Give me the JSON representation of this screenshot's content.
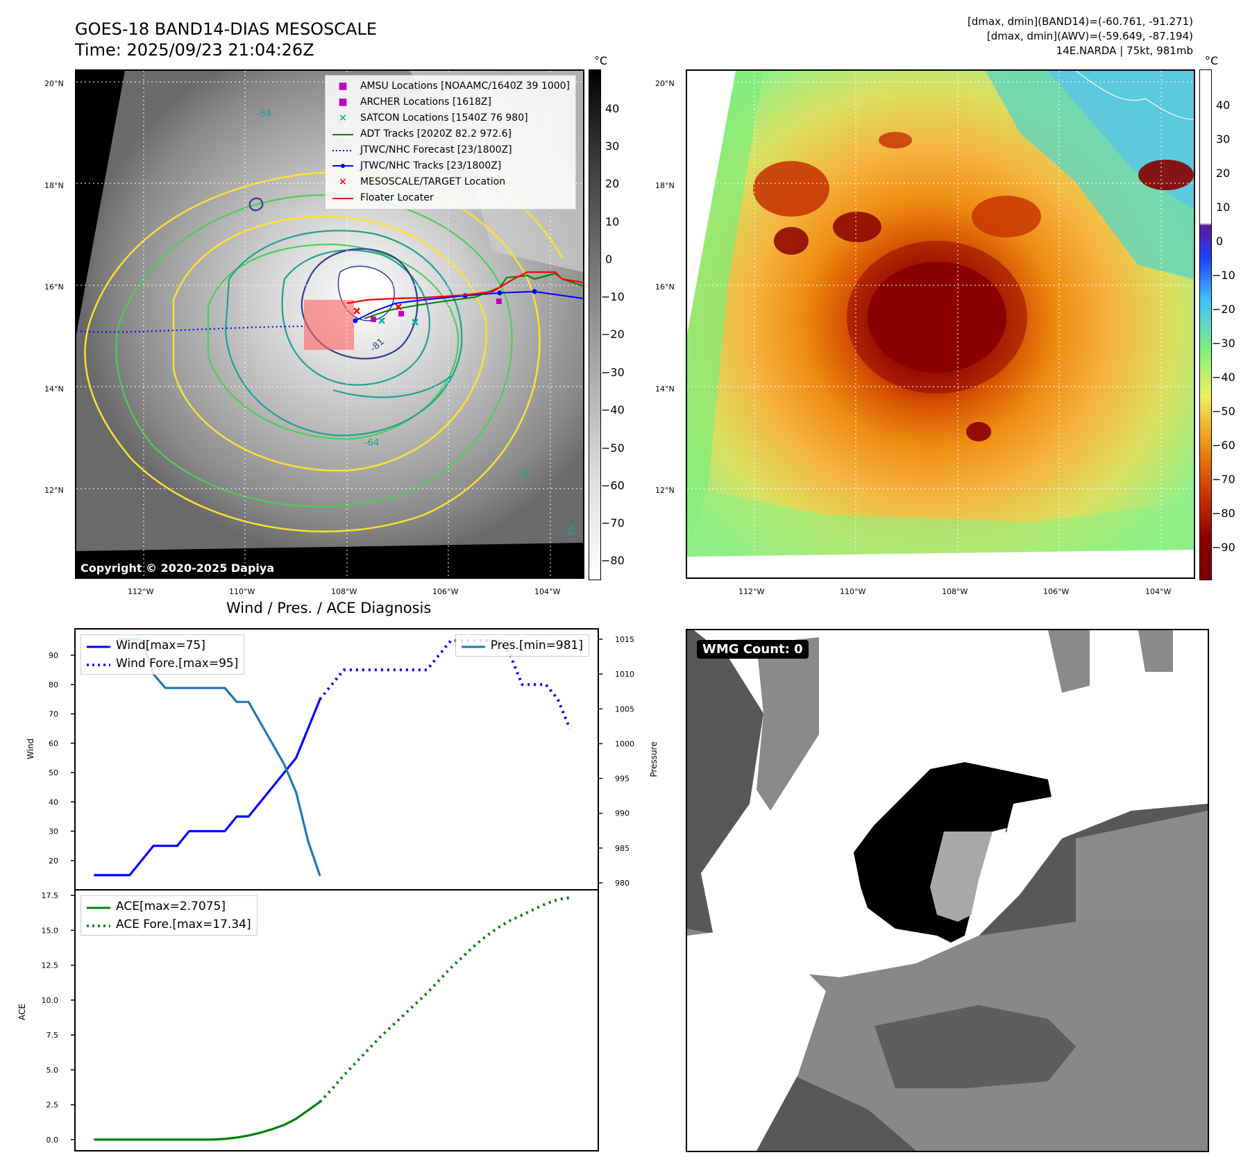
{
  "header": {
    "title_line1": "GOES-18 BAND14-DIAS MESOSCALE",
    "title_line2": "Time: 2025/09/23 21:04:26Z",
    "info_line1": "[dmax, dmin](BAND14)=(-60.761, -91.271)",
    "info_line2": "[dmax, dmin](AWV)=(-59.649, -87.194)",
    "info_line3": "14E.NARDA | 75kt, 981mb"
  },
  "map": {
    "lat_labels": [
      "20°N",
      "18°N",
      "16°N",
      "14°N",
      "12°N"
    ],
    "lon_labels": [
      "112°W",
      "110°W",
      "108°W",
      "106°W",
      "104°W"
    ],
    "colorbar_unit": "°C",
    "left_colorbar_ticks": [
      "40",
      "30",
      "20",
      "10",
      "0",
      "−10",
      "−20",
      "−30",
      "−40",
      "−50",
      "−60",
      "−70",
      "−80"
    ],
    "right_colorbar_ticks": [
      "40",
      "30",
      "20",
      "10",
      "0",
      "−10",
      "−20",
      "−30",
      "−40",
      "−50",
      "−60",
      "−70",
      "−80",
      "−90"
    ],
    "copyright": "Copyright © 2020-2025 Dapiya",
    "contour_labels": [
      "-54",
      "-64",
      "-81",
      "-31",
      "-54"
    ],
    "legend": [
      {
        "label": "AMSU Locations [NOAAMC/1640Z 39 1000]",
        "color": "#c000c0",
        "symbol": "■"
      },
      {
        "label": "ARCHER Locations [1618Z]",
        "color": "#c000c0",
        "symbol": "■"
      },
      {
        "label": "SATCON Locations [1540Z 76 980]",
        "color": "#00b0b0",
        "symbol": "×"
      },
      {
        "label": "ADT Tracks [2020Z 82.2 972.6]",
        "color": "#008000",
        "symbol": "line"
      },
      {
        "label": "JTWC/NHC Forecast [23/1800Z]",
        "color": "#0000ff",
        "symbol": "dotted"
      },
      {
        "label": "JTWC/NHC Tracks [23/1800Z]",
        "color": "#0000ff",
        "symbol": "line-dot"
      },
      {
        "label": "MESOSCALE/TARGET Location",
        "color": "#ff0000",
        "symbol": "×"
      },
      {
        "label": "Floater Locater",
        "color": "#ff0000",
        "symbol": "line"
      }
    ]
  },
  "diag": {
    "title": "Wind / Pres. / ACE Diagnosis",
    "wind_ylabel": "Wind",
    "pres_ylabel": "Pressure",
    "ace_ylabel": "ACE",
    "wind_ticks": [
      "90",
      "80",
      "70",
      "60",
      "50",
      "40",
      "30",
      "20"
    ],
    "pres_ticks": [
      "1015",
      "1010",
      "1005",
      "1000",
      "995",
      "990",
      "985",
      "980"
    ],
    "ace_ticks": [
      "17.5",
      "15.0",
      "12.5",
      "10.0",
      "7.5",
      "5.0",
      "2.5",
      "0.0"
    ],
    "legend_wind": "Wind[max=75]",
    "legend_wind_fore": "Wind Fore.[max=95]",
    "legend_pres": "Pres.[min=981]",
    "legend_ace": "ACE[max=2.7075]",
    "legend_ace_fore": "ACE Fore.[max=17.34]"
  },
  "wmg": {
    "label": "WMG Count: 0"
  },
  "chart_data": [
    {
      "type": "line",
      "title": "Wind / Pres. / ACE Diagnosis",
      "ylabel": "Wind",
      "ylim": [
        10,
        99
      ],
      "x": [
        0,
        1,
        2,
        3,
        4,
        5,
        6,
        7,
        8,
        9,
        10,
        11,
        12,
        13,
        14,
        15,
        16,
        17,
        18,
        19,
        20,
        21,
        22,
        23,
        24,
        25,
        26,
        27,
        28,
        29,
        30,
        31,
        32,
        33,
        34,
        35,
        36,
        37,
        38,
        39,
        40
      ],
      "series": [
        {
          "name": "Wind[max=75]",
          "color": "#0000ff",
          "style": "solid",
          "x": [
            0,
            1,
            2,
            3,
            4,
            5,
            6,
            7,
            8,
            9,
            10,
            11,
            12,
            13,
            14,
            15,
            16,
            17,
            18,
            19
          ],
          "values": [
            15,
            15,
            15,
            15,
            20,
            25,
            25,
            25,
            30,
            30,
            30,
            30,
            35,
            35,
            40,
            45,
            50,
            55,
            65,
            75
          ]
        },
        {
          "name": "Wind Fore.[max=95]",
          "color": "#0000ff",
          "style": "dotted",
          "x": [
            19,
            20,
            21,
            22,
            23,
            24,
            25,
            26,
            27,
            28,
            29,
            30,
            31,
            32,
            33,
            34,
            35,
            36,
            37,
            38,
            39,
            40
          ],
          "values": [
            75,
            80,
            85,
            85,
            85,
            85,
            85,
            85,
            85,
            85,
            90,
            95,
            95,
            95,
            95,
            95,
            90,
            80,
            80,
            80,
            75,
            65
          ]
        }
      ]
    },
    {
      "type": "line",
      "ylabel": "Pressure",
      "ylim": [
        979,
        1016.5
      ],
      "series": [
        {
          "name": "Pres.[min=981]",
          "color": "#1f77b4",
          "style": "solid",
          "x": [
            2,
            3,
            4,
            5,
            6,
            7,
            8,
            9,
            10,
            11,
            12,
            13,
            14,
            15,
            16,
            17,
            18,
            19
          ],
          "values": [
            1015,
            1015,
            1015,
            1010,
            1008,
            1008,
            1008,
            1008,
            1008,
            1008,
            1006,
            1006,
            1003,
            1000,
            997,
            993,
            986,
            981
          ]
        }
      ]
    },
    {
      "type": "line",
      "ylabel": "ACE",
      "ylim": [
        -0.8,
        17.9
      ],
      "series": [
        {
          "name": "ACE[max=2.7075]",
          "color": "#008000",
          "style": "solid",
          "x": [
            0,
            2,
            4,
            6,
            8,
            10,
            11,
            12,
            13,
            14,
            15,
            16,
            17,
            18,
            19
          ],
          "values": [
            0,
            0,
            0,
            0,
            0,
            0,
            0.05,
            0.15,
            0.3,
            0.5,
            0.75,
            1.05,
            1.5,
            2.1,
            2.7075
          ]
        },
        {
          "name": "ACE Fore.[max=17.34]",
          "color": "#008000",
          "style": "dotted",
          "x": [
            19,
            20,
            21,
            22,
            23,
            24,
            25,
            26,
            27,
            28,
            29,
            30,
            31,
            32,
            33,
            34,
            35,
            36,
            37,
            38,
            39,
            40
          ],
          "values": [
            2.7075,
            3.6,
            4.6,
            5.5,
            6.4,
            7.3,
            8.1,
            8.9,
            9.7,
            10.5,
            11.4,
            12.3,
            13.1,
            13.9,
            14.6,
            15.2,
            15.7,
            16.1,
            16.5,
            16.9,
            17.2,
            17.34
          ]
        }
      ]
    }
  ]
}
